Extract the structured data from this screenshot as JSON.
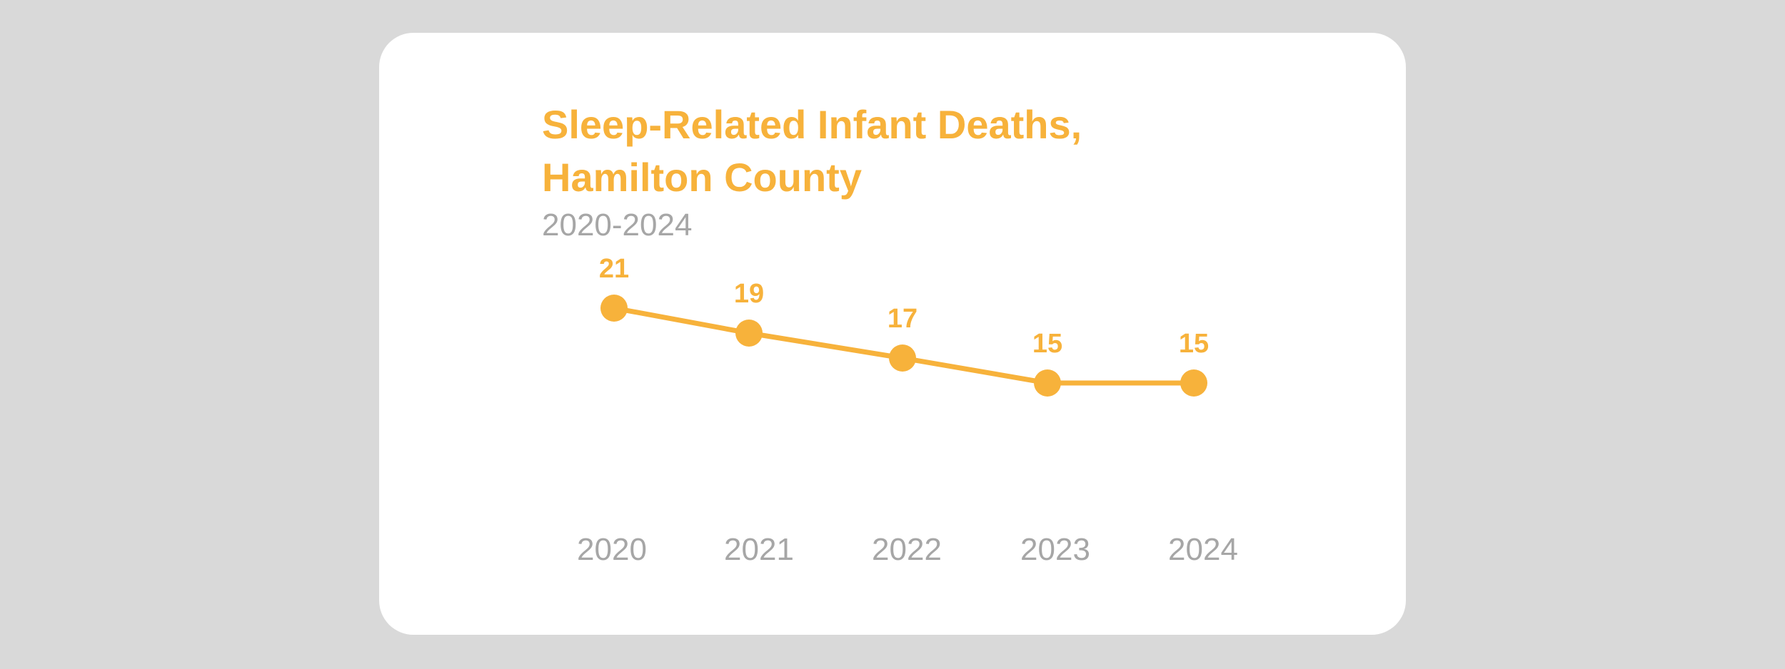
{
  "chart_data": {
    "type": "line",
    "title": "Sleep-Related Infant Deaths, Hamilton County",
    "subtitle": "2020-2024",
    "categories": [
      "2020",
      "2021",
      "2022",
      "2023",
      "2024"
    ],
    "series": [
      {
        "values": [
          21,
          19,
          17,
          15,
          15
        ]
      }
    ],
    "xlabel": "",
    "ylabel": "",
    "ylim": [
      9,
      21
    ],
    "grid": false,
    "legend": "none",
    "data_labels": true
  },
  "colors": {
    "series": "#f7b23b",
    "axis_text": "#a6a6a6",
    "card": "#ffffff",
    "background": "#d9d9d9"
  }
}
